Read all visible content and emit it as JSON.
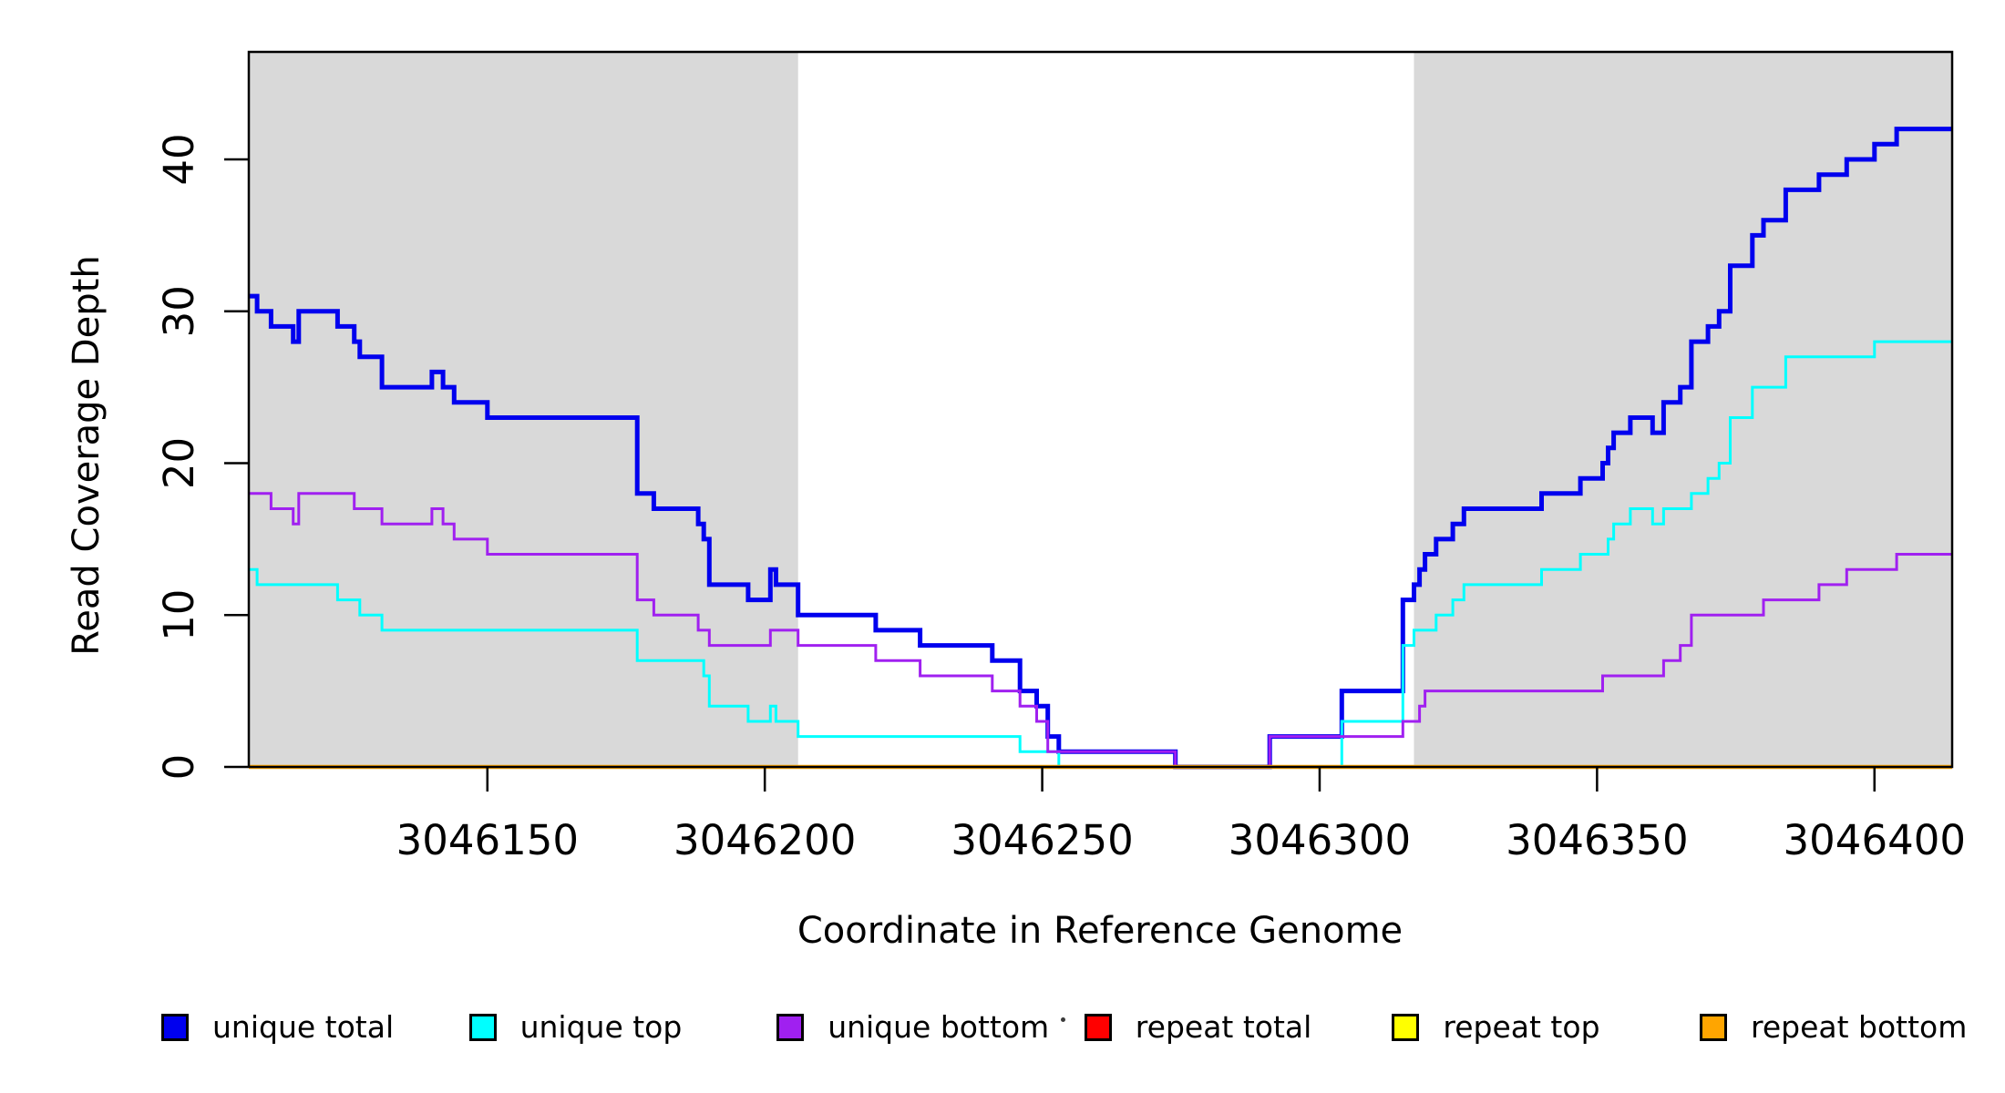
{
  "chart_data": {
    "type": "line",
    "subtype": "step-after",
    "title": "",
    "xlabel": "Coordinate in Reference Genome",
    "ylabel": "Read Coverage Depth",
    "xlim": [
      3046107,
      3046414
    ],
    "ylim": [
      0,
      47
    ],
    "grid": false,
    "legend_position": "bottom-horizontal",
    "x_ticks": [
      3046150,
      3046200,
      3046250,
      3046300,
      3046350,
      3046400
    ],
    "x_tick_labels": [
      "3046150",
      "3046200",
      "3046250",
      "3046300",
      "3046350",
      "3046400"
    ],
    "y_ticks": [
      0,
      10,
      20,
      30,
      40
    ],
    "y_tick_labels": [
      "0",
      "10",
      "20",
      "30",
      "40"
    ],
    "background_color": "#ffffff",
    "shaded_band_color": "#d9d9d9",
    "shaded_bands": [
      {
        "x0": 3046107,
        "x1": 3046206
      },
      {
        "x0": 3046317,
        "x1": 3046414
      }
    ],
    "series": [
      {
        "name": "unique total",
        "color": "#0000ee",
        "stroke_width": 5,
        "points": [
          [
            3046107,
            31
          ],
          [
            3046108.5,
            30
          ],
          [
            3046111,
            29
          ],
          [
            3046115,
            28
          ],
          [
            3046116,
            30
          ],
          [
            3046123,
            29
          ],
          [
            3046126,
            28
          ],
          [
            3046127,
            27
          ],
          [
            3046131,
            25
          ],
          [
            3046140,
            26
          ],
          [
            3046142,
            25
          ],
          [
            3046144,
            24
          ],
          [
            3046150,
            23
          ],
          [
            3046177,
            18
          ],
          [
            3046180,
            17
          ],
          [
            3046188,
            16
          ],
          [
            3046189,
            15
          ],
          [
            3046190,
            12
          ],
          [
            3046197,
            11
          ],
          [
            3046201,
            13
          ],
          [
            3046202,
            12
          ],
          [
            3046206,
            10
          ],
          [
            3046220,
            9
          ],
          [
            3046228,
            8
          ],
          [
            3046241,
            7
          ],
          [
            3046246,
            5
          ],
          [
            3046249,
            4
          ],
          [
            3046251,
            2
          ],
          [
            3046253,
            1
          ],
          [
            3046274,
            0
          ],
          [
            3046291,
            2
          ],
          [
            3046304,
            5
          ],
          [
            3046315,
            11
          ],
          [
            3046317,
            12
          ],
          [
            3046318,
            13
          ],
          [
            3046319,
            14
          ],
          [
            3046321,
            15
          ],
          [
            3046324,
            16
          ],
          [
            3046326,
            17
          ],
          [
            3046340,
            18
          ],
          [
            3046347,
            19
          ],
          [
            3046351,
            20
          ],
          [
            3046352,
            21
          ],
          [
            3046353,
            22
          ],
          [
            3046356,
            23
          ],
          [
            3046360,
            22
          ],
          [
            3046362,
            24
          ],
          [
            3046365,
            25
          ],
          [
            3046367,
            28
          ],
          [
            3046370,
            29
          ],
          [
            3046372,
            30
          ],
          [
            3046374,
            33
          ],
          [
            3046378,
            35
          ],
          [
            3046380,
            36
          ],
          [
            3046384,
            38
          ],
          [
            3046390,
            39
          ],
          [
            3046395,
            40
          ],
          [
            3046400,
            41
          ],
          [
            3046404,
            42
          ]
        ]
      },
      {
        "name": "unique top",
        "color": "#00ffff",
        "stroke_width": 3,
        "points": [
          [
            3046107,
            13
          ],
          [
            3046108.5,
            12
          ],
          [
            3046123,
            11
          ],
          [
            3046127,
            10
          ],
          [
            3046131,
            9
          ],
          [
            3046177,
            7
          ],
          [
            3046189,
            6
          ],
          [
            3046190,
            4
          ],
          [
            3046197,
            3
          ],
          [
            3046201,
            4
          ],
          [
            3046202,
            3
          ],
          [
            3046206,
            2
          ],
          [
            3046246,
            1
          ],
          [
            3046253,
            0
          ],
          [
            3046304,
            3
          ],
          [
            3046315,
            8
          ],
          [
            3046317,
            9
          ],
          [
            3046321,
            10
          ],
          [
            3046324,
            11
          ],
          [
            3046326,
            12
          ],
          [
            3046340,
            13
          ],
          [
            3046347,
            14
          ],
          [
            3046352,
            15
          ],
          [
            3046353,
            16
          ],
          [
            3046356,
            17
          ],
          [
            3046360,
            16
          ],
          [
            3046362,
            17
          ],
          [
            3046367,
            18
          ],
          [
            3046370,
            19
          ],
          [
            3046372,
            20
          ],
          [
            3046374,
            23
          ],
          [
            3046378,
            25
          ],
          [
            3046384,
            27
          ],
          [
            3046400,
            28
          ]
        ]
      },
      {
        "name": "unique bottom",
        "color": "#a020f0",
        "stroke_width": 3,
        "points": [
          [
            3046107,
            18
          ],
          [
            3046111,
            17
          ],
          [
            3046115,
            16
          ],
          [
            3046116,
            18
          ],
          [
            3046126,
            17
          ],
          [
            3046131,
            16
          ],
          [
            3046140,
            17
          ],
          [
            3046142,
            16
          ],
          [
            3046144,
            15
          ],
          [
            3046150,
            14
          ],
          [
            3046177,
            11
          ],
          [
            3046180,
            10
          ],
          [
            3046188,
            9
          ],
          [
            3046190,
            8
          ],
          [
            3046201,
            9
          ],
          [
            3046206,
            8
          ],
          [
            3046220,
            7
          ],
          [
            3046228,
            6
          ],
          [
            3046241,
            5
          ],
          [
            3046246,
            4
          ],
          [
            3046249,
            3
          ],
          [
            3046251,
            1
          ],
          [
            3046274,
            0
          ],
          [
            3046291,
            2
          ],
          [
            3046315,
            3
          ],
          [
            3046318,
            4
          ],
          [
            3046319,
            5
          ],
          [
            3046351,
            6
          ],
          [
            3046362,
            7
          ],
          [
            3046365,
            8
          ],
          [
            3046367,
            10
          ],
          [
            3046380,
            11
          ],
          [
            3046390,
            12
          ],
          [
            3046395,
            13
          ],
          [
            3046404,
            14
          ]
        ]
      },
      {
        "name": "repeat total",
        "color": "#ff0000",
        "stroke_width": 3,
        "points": [
          [
            3046107,
            0
          ]
        ]
      },
      {
        "name": "repeat top",
        "color": "#ffff00",
        "stroke_width": 3,
        "points": [
          [
            3046107,
            0
          ]
        ]
      },
      {
        "name": "repeat bottom",
        "color": "#ffa500",
        "stroke_width": 4.5,
        "points": [
          [
            3046107,
            0
          ]
        ]
      }
    ]
  },
  "legend": {
    "artifact_dot": "·",
    "items": [
      "unique total",
      "unique top",
      "unique bottom",
      "repeat total",
      "repeat top",
      "repeat bottom"
    ]
  }
}
